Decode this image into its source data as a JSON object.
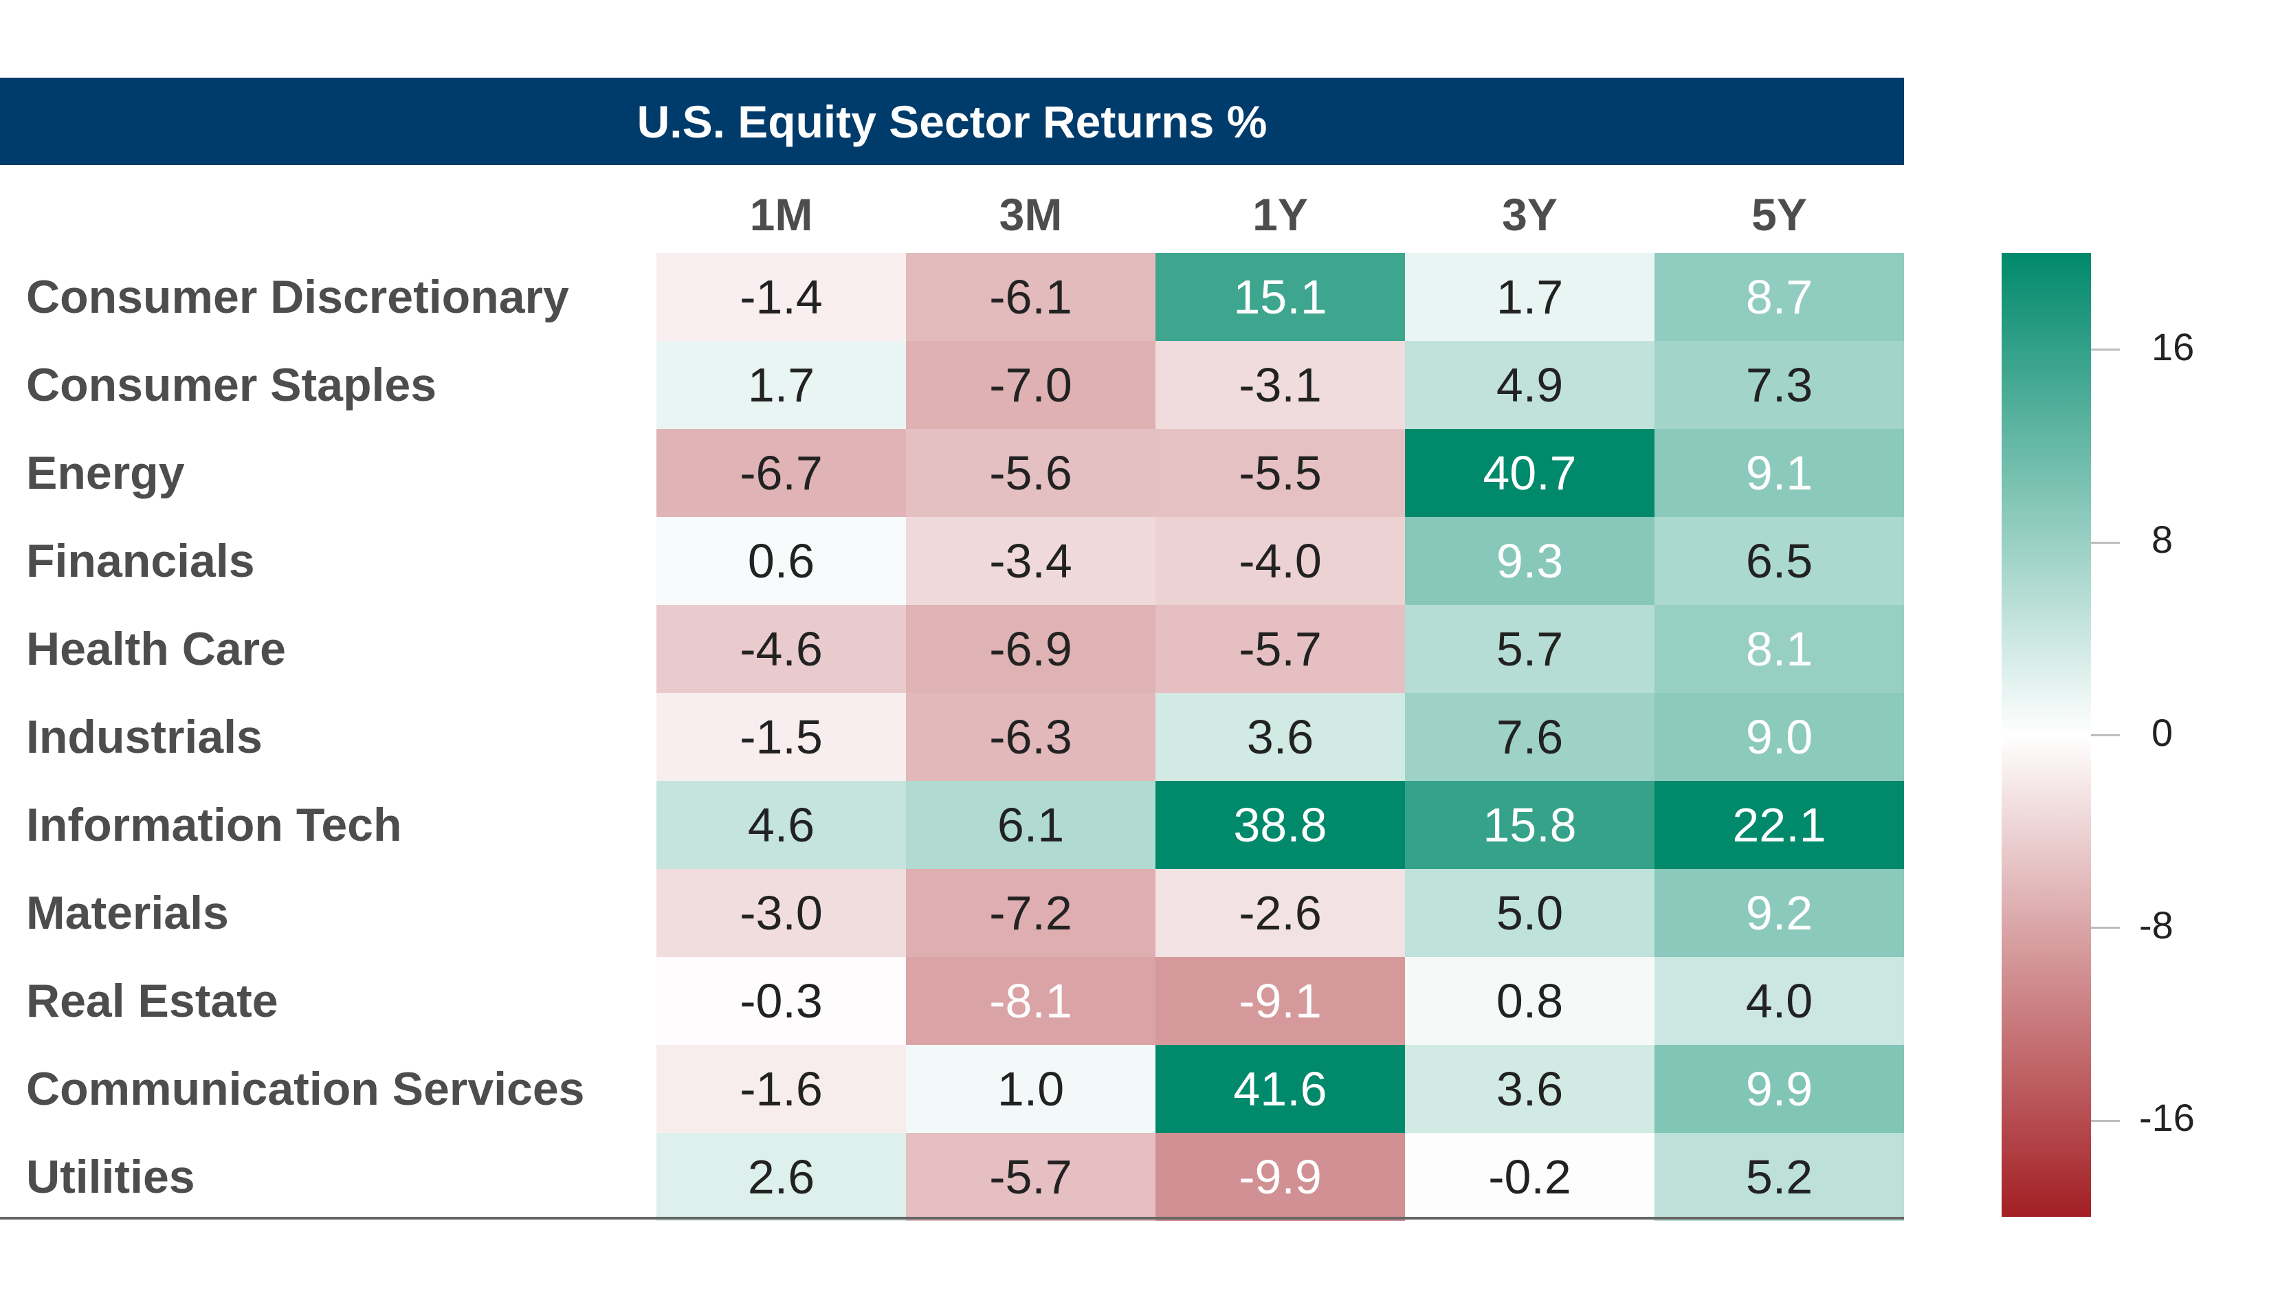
{
  "chart_data": {
    "type": "heatmap",
    "title": "U.S. Equity Sector Returns %",
    "columns": [
      "1M",
      "3M",
      "1Y",
      "3Y",
      "5Y"
    ],
    "rows": [
      {
        "name": "Consumer Discretionary",
        "values": [
          -1.4,
          -6.1,
          15.1,
          1.7,
          8.7
        ],
        "labels": [
          "-1.4",
          "-6.1",
          "15.1",
          "1.7",
          "8.7"
        ]
      },
      {
        "name": "Consumer Staples",
        "values": [
          1.7,
          -7.0,
          -3.1,
          4.9,
          7.3
        ],
        "labels": [
          "1.7",
          "-7.0",
          "-3.1",
          "4.9",
          "7.3"
        ]
      },
      {
        "name": "Energy",
        "values": [
          -6.7,
          -5.6,
          -5.5,
          40.7,
          9.1
        ],
        "labels": [
          "-6.7",
          "-5.6",
          "-5.5",
          "40.7",
          "9.1"
        ]
      },
      {
        "name": "Financials",
        "values": [
          0.6,
          -3.4,
          -4.0,
          9.3,
          6.5
        ],
        "labels": [
          "0.6",
          "-3.4",
          "-4.0",
          "9.3",
          "6.5"
        ]
      },
      {
        "name": "Health Care",
        "values": [
          -4.6,
          -6.9,
          -5.7,
          5.7,
          8.1
        ],
        "labels": [
          "-4.6",
          "-6.9",
          "-5.7",
          "5.7",
          "8.1"
        ]
      },
      {
        "name": "Industrials",
        "values": [
          -1.5,
          -6.3,
          3.6,
          7.6,
          9.0
        ],
        "labels": [
          "-1.5",
          "-6.3",
          "3.6",
          "7.6",
          "9.0"
        ]
      },
      {
        "name": "Information Tech",
        "values": [
          4.6,
          6.1,
          38.8,
          15.8,
          22.1
        ],
        "labels": [
          "4.6",
          "6.1",
          "38.8",
          "15.8",
          "22.1"
        ]
      },
      {
        "name": "Materials",
        "values": [
          -3.0,
          -7.2,
          -2.6,
          5.0,
          9.2
        ],
        "labels": [
          "-3.0",
          "-7.2",
          "-2.6",
          "5.0",
          "9.2"
        ]
      },
      {
        "name": "Real Estate",
        "values": [
          -0.3,
          -8.1,
          -9.1,
          0.8,
          4.0
        ],
        "labels": [
          "-0.3",
          "-8.1",
          "-9.1",
          "0.8",
          "4.0"
        ]
      },
      {
        "name": "Communication Services",
        "values": [
          -1.6,
          1.0,
          41.6,
          3.6,
          9.9
        ],
        "labels": [
          "-1.6",
          "1.0",
          "41.6",
          "3.6",
          "9.9"
        ]
      },
      {
        "name": "Utilities",
        "values": [
          2.6,
          -5.7,
          -9.9,
          -0.2,
          5.2
        ],
        "labels": [
          "2.6",
          "-5.7",
          "-9.9",
          "-0.2",
          "5.2"
        ]
      }
    ],
    "colorbar": {
      "range": [
        -20,
        20
      ],
      "ticks": [
        16,
        8,
        0,
        -8,
        -16
      ],
      "tick_labels": [
        "16",
        "8",
        "0",
        "-8",
        "-16"
      ],
      "colors": {
        "min": "#a31f24",
        "mid": "#ffffff",
        "max": "#00896b"
      }
    }
  }
}
